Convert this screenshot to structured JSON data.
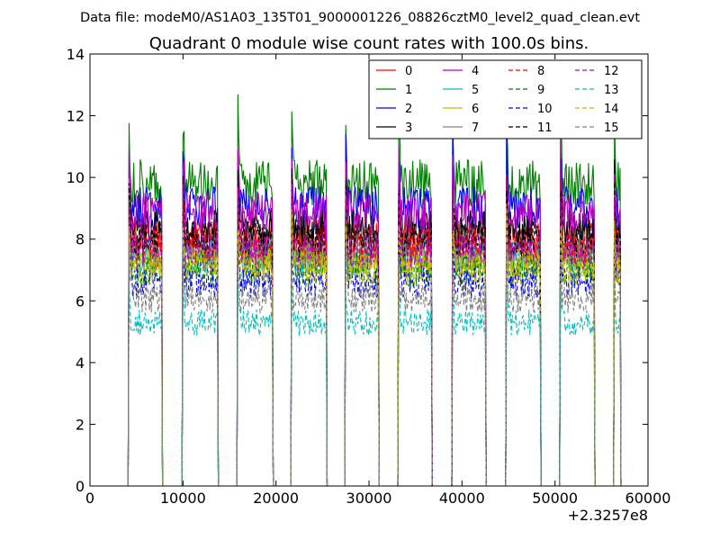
{
  "header": {
    "suptitle": "Data file: modeM0/AS1A03_135T01_9000001226_08826cztM0_level2_quad_clean.evt"
  },
  "chart_data": {
    "type": "line",
    "title": "Quadrant 0 module wise count rates with 100.0s bins.",
    "xlabel": "",
    "ylabel": "",
    "x_offset_label": "+2.3257e8",
    "xlim": [
      0,
      60000
    ],
    "ylim": [
      0,
      14
    ],
    "x_ticks": [
      0,
      10000,
      20000,
      30000,
      40000,
      50000,
      60000
    ],
    "x_tick_labels": [
      "0",
      "10000",
      "20000",
      "30000",
      "40000",
      "50000",
      "60000"
    ],
    "y_ticks": [
      0,
      2,
      4,
      6,
      8,
      10,
      12,
      14
    ],
    "y_tick_labels": [
      "0",
      "2",
      "4",
      "6",
      "8",
      "10",
      "12",
      "14"
    ],
    "legend_position": "top-right",
    "grid": false,
    "active_intervals": [
      [
        4200,
        7700
      ],
      [
        10000,
        13700
      ],
      [
        15900,
        19600
      ],
      [
        21700,
        25400
      ],
      [
        27500,
        31000
      ],
      [
        33200,
        36700
      ],
      [
        39000,
        42500
      ],
      [
        44800,
        48400
      ],
      [
        50600,
        54200
      ],
      [
        56400,
        57000
      ]
    ],
    "series": [
      {
        "name": "0",
        "color": "#ff0000",
        "dashed": false,
        "mean": 8.0
      },
      {
        "name": "1",
        "color": "#008000",
        "dashed": false,
        "mean": 9.8
      },
      {
        "name": "2",
        "color": "#0000ff",
        "dashed": false,
        "mean": 9.0
      },
      {
        "name": "3",
        "color": "#000000",
        "dashed": false,
        "mean": 8.3
      },
      {
        "name": "4",
        "color": "#bf00bf",
        "dashed": false,
        "mean": 8.8
      },
      {
        "name": "5",
        "color": "#00bfbf",
        "dashed": false,
        "mean": 7.4
      },
      {
        "name": "6",
        "color": "#bfbf00",
        "dashed": false,
        "mean": 7.3
      },
      {
        "name": "7",
        "color": "#808080",
        "dashed": false,
        "mean": 7.7
      },
      {
        "name": "8",
        "color": "#ff0000",
        "dashed": true,
        "mean": 7.8
      },
      {
        "name": "9",
        "color": "#008000",
        "dashed": true,
        "mean": 7.0
      },
      {
        "name": "10",
        "color": "#0000ff",
        "dashed": true,
        "mean": 6.6
      },
      {
        "name": "11",
        "color": "#000000",
        "dashed": true,
        "mean": 8.0
      },
      {
        "name": "12",
        "color": "#bf00bf",
        "dashed": true,
        "mean": 7.6
      },
      {
        "name": "13",
        "color": "#00bfbf",
        "dashed": true,
        "mean": 5.3
      },
      {
        "name": "14",
        "color": "#bfbf00",
        "dashed": true,
        "mean": 7.1
      },
      {
        "name": "15",
        "color": "#808080",
        "dashed": true,
        "mean": 6.1
      }
    ]
  }
}
